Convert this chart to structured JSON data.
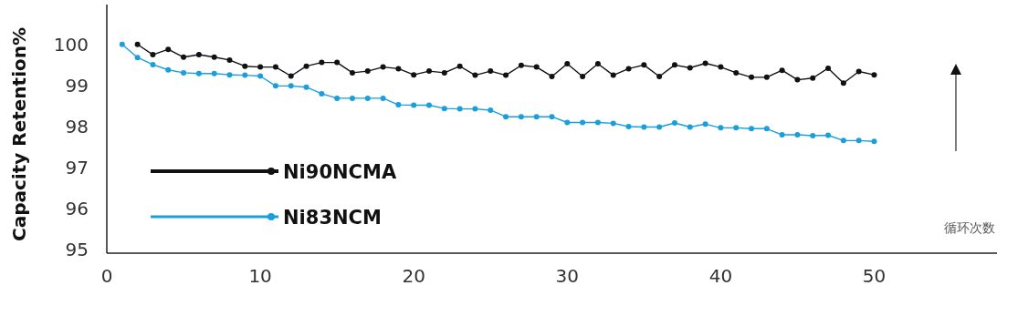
{
  "chart_data": {
    "type": "line",
    "xlabel": "循环次数",
    "ylabel": "Capacity Retention%",
    "xlim": [
      0,
      58
    ],
    "xticks": [
      0,
      10,
      20,
      30,
      40,
      50
    ],
    "ylim": [
      94.9,
      100.95
    ],
    "yticks": [
      95,
      96,
      97,
      98,
      99,
      100
    ],
    "marker": "circle",
    "legend": "bottom left",
    "grid": false,
    "series": [
      {
        "name": "Ni90NCMA",
        "color": "#111111",
        "x": [
          2,
          3,
          4,
          5,
          6,
          7,
          8,
          9,
          10,
          11,
          12,
          13,
          14,
          15,
          16,
          17,
          18,
          19,
          20,
          21,
          22,
          23,
          24,
          25,
          26,
          27,
          28,
          29,
          30,
          31,
          32,
          33,
          34,
          35,
          36,
          37,
          38,
          39,
          40,
          41,
          42,
          43,
          44,
          45,
          46,
          47,
          48,
          49,
          50
        ],
        "values": [
          99.98,
          99.73,
          99.86,
          99.67,
          99.73,
          99.67,
          99.6,
          99.45,
          99.43,
          99.43,
          99.21,
          99.45,
          99.54,
          99.54,
          99.29,
          99.33,
          99.43,
          99.39,
          99.24,
          99.33,
          99.29,
          99.45,
          99.23,
          99.33,
          99.23,
          99.47,
          99.43,
          99.2,
          99.51,
          99.2,
          99.51,
          99.23,
          99.39,
          99.48,
          99.2,
          99.48,
          99.41,
          99.52,
          99.43,
          99.29,
          99.18,
          99.18,
          99.35,
          99.12,
          99.16,
          99.4,
          99.04,
          99.32,
          99.24
        ]
      },
      {
        "name": "Ni83NCM",
        "color": "#1a9fdc",
        "x": [
          1,
          2,
          3,
          4,
          5,
          6,
          7,
          8,
          9,
          10,
          11,
          12,
          13,
          14,
          15,
          16,
          17,
          18,
          19,
          20,
          21,
          22,
          23,
          24,
          25,
          26,
          27,
          28,
          29,
          30,
          31,
          32,
          33,
          34,
          35,
          36,
          37,
          38,
          39,
          40,
          41,
          42,
          43,
          44,
          45,
          46,
          47,
          48,
          49,
          50
        ],
        "values": [
          99.98,
          99.66,
          99.49,
          99.36,
          99.29,
          99.27,
          99.27,
          99.24,
          99.23,
          99.21,
          98.97,
          98.97,
          98.94,
          98.78,
          98.67,
          98.67,
          98.67,
          98.67,
          98.51,
          98.5,
          98.5,
          98.42,
          98.41,
          98.41,
          98.38,
          98.22,
          98.22,
          98.22,
          98.22,
          98.08,
          98.08,
          98.08,
          98.06,
          97.98,
          97.97,
          97.97,
          98.07,
          97.97,
          98.04,
          97.95,
          97.95,
          97.93,
          97.93,
          97.78,
          97.78,
          97.76,
          97.77,
          97.64,
          97.64,
          97.62
        ]
      }
    ]
  }
}
